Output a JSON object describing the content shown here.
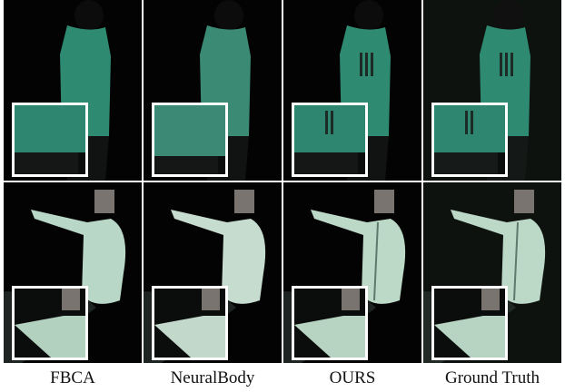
{
  "figure": {
    "columns": [
      {
        "label": "FBCA"
      },
      {
        "label": "NeuralBody"
      },
      {
        "label": "OURS"
      },
      {
        "label": "Ground Truth"
      }
    ],
    "colors": {
      "background": "#000000",
      "shirt": "#2f8a72",
      "hoodie": "#b9d7c6",
      "inset_border": "#ffffff"
    }
  }
}
